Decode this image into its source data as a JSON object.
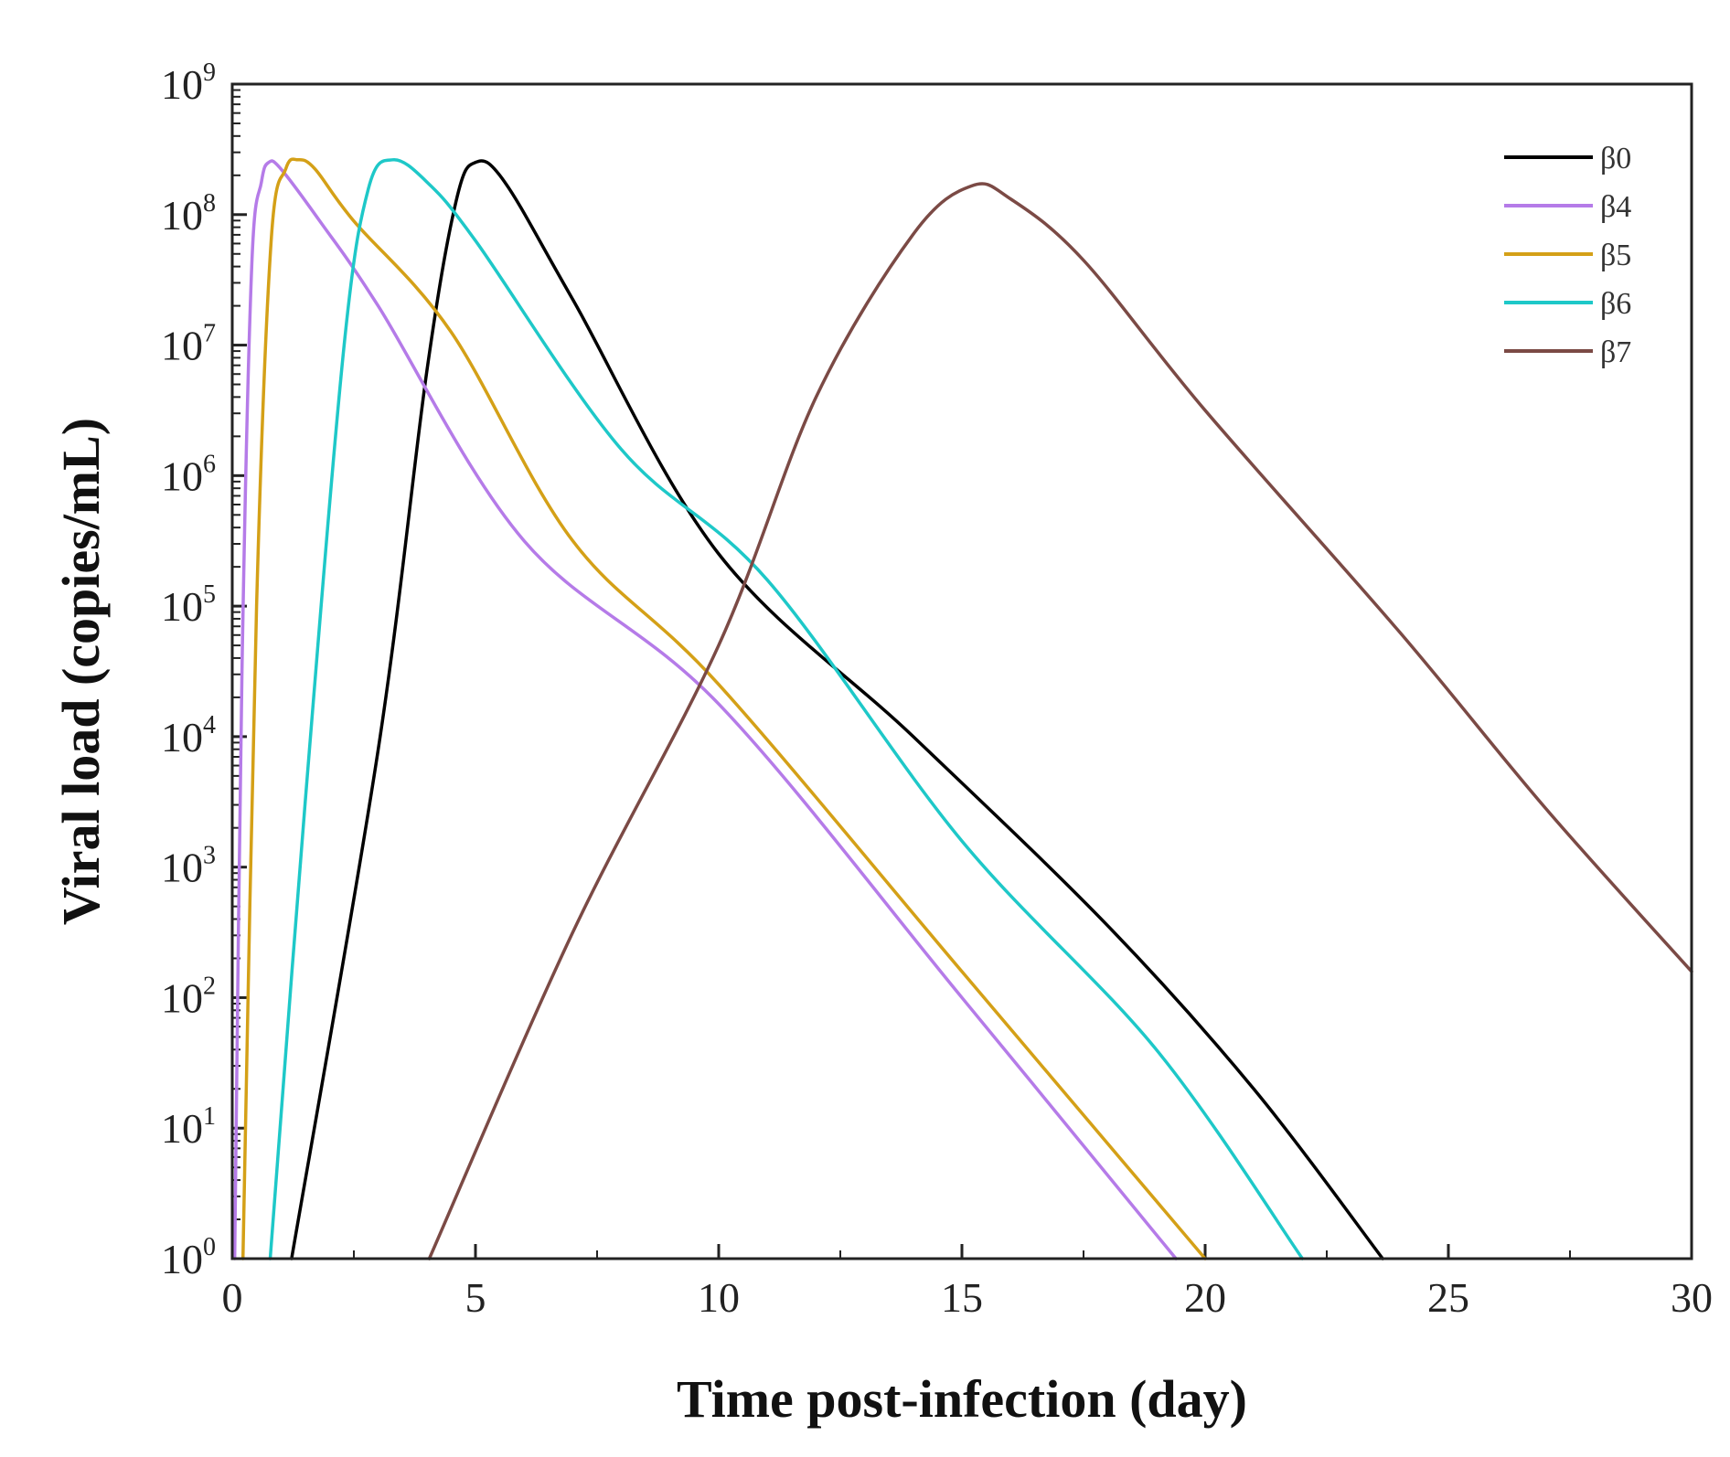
{
  "chart_data": {
    "type": "line",
    "title": "",
    "xlabel": "Time post-infection (day)",
    "ylabel": "Viral load (copies/mL)",
    "xlim": [
      0,
      30
    ],
    "ylim_log10": [
      0,
      9
    ],
    "yscale": "log",
    "x_ticks": [
      "0",
      "5",
      "10",
      "15",
      "20",
      "25",
      "30"
    ],
    "y_ticks": [
      {
        "base": "10",
        "exp": "0"
      },
      {
        "base": "10",
        "exp": "1"
      },
      {
        "base": "10",
        "exp": "2"
      },
      {
        "base": "10",
        "exp": "3"
      },
      {
        "base": "10",
        "exp": "4"
      },
      {
        "base": "10",
        "exp": "5"
      },
      {
        "base": "10",
        "exp": "6"
      },
      {
        "base": "10",
        "exp": "7"
      },
      {
        "base": "10",
        "exp": "8"
      },
      {
        "base": "10",
        "exp": "9"
      }
    ],
    "legend_position": "top-right",
    "grid": false,
    "series": [
      {
        "name": "β0",
        "color": "#000000",
        "x": [
          1.22,
          3.0,
          4.0,
          4.6,
          5.0,
          5.6,
          7.0,
          10.0,
          14.0,
          18.0,
          21.0,
          23.65
        ],
        "log10_y": [
          0.0,
          3.9,
          6.8,
          8.1,
          8.4,
          8.25,
          7.35,
          5.4,
          4.0,
          2.55,
          1.3,
          0.0
        ]
      },
      {
        "name": "β4",
        "color": "#b57be8",
        "x": [
          0.05,
          0.2,
          0.4,
          0.6,
          0.75,
          1.0,
          1.8,
          3.0,
          6.0,
          10.0,
          15.0,
          19.4
        ],
        "log10_y": [
          0.0,
          4.5,
          7.6,
          8.25,
          8.4,
          8.35,
          7.95,
          7.3,
          5.5,
          4.25,
          2.0,
          0.0
        ]
      },
      {
        "name": "β5",
        "color": "#d4a017",
        "x": [
          0.22,
          0.5,
          0.8,
          1.1,
          1.35,
          1.7,
          2.5,
          4.5,
          7.0,
          10.0,
          15.0,
          20.0
        ],
        "log10_y": [
          0.0,
          5.0,
          7.8,
          8.35,
          8.42,
          8.35,
          7.95,
          7.1,
          5.5,
          4.4,
          2.2,
          0.0
        ]
      },
      {
        "name": "β6",
        "color": "#1ec8c8",
        "x": [
          0.78,
          1.5,
          2.3,
          2.8,
          3.3,
          4.0,
          5.0,
          8.0,
          11.0,
          15.0,
          19.0,
          22.0
        ],
        "log10_y": [
          0.0,
          3.5,
          7.0,
          8.2,
          8.42,
          8.25,
          7.8,
          6.2,
          5.2,
          3.2,
          1.6,
          0.0
        ]
      },
      {
        "name": "β7",
        "color": "#7b4a45",
        "x": [
          4.05,
          7.0,
          10.0,
          12.0,
          14.0,
          15.2,
          16.0,
          17.5,
          20.0,
          24.0,
          27.0,
          30.0
        ],
        "log10_y": [
          0.0,
          2.5,
          4.7,
          6.6,
          7.85,
          8.22,
          8.12,
          7.65,
          6.5,
          4.8,
          3.45,
          2.2
        ]
      }
    ]
  }
}
